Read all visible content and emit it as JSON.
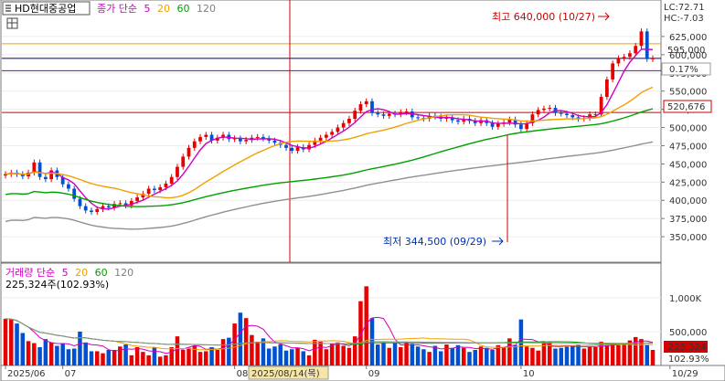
{
  "stock_name": "HD현대중공업",
  "price_legend": {
    "label": "종가 단순",
    "ma": [
      "5",
      "20",
      "60",
      "120"
    ]
  },
  "volume_legend": {
    "label": "거래량 단순",
    "ma": [
      "5",
      "20",
      "60",
      "120"
    ]
  },
  "volume_value_text": "225,324주(102.93%)",
  "lc_text": "LC:72.71",
  "hc_text": "HC:-7.03",
  "high_annotation": "최고 640,000 (10/27)",
  "low_annotation": "최저 344,500 (09/29)",
  "price_tag": "595,000",
  "change_tag": "0.17%",
  "redline_tag": "520,676",
  "vol_tag": "225,324",
  "vol_pct_tag": "102.93%",
  "crosshair_date": "2025/08/14(목)",
  "colors": {
    "up": "#e60000",
    "down": "#0050d0",
    "ma5": "#d000c0",
    "ma20": "#f0a000",
    "ma60": "#00a000",
    "ma120": "#909090"
  },
  "chart_data": [
    {
      "type": "candlestick",
      "title": "HD현대중공업",
      "ylim": [
        320000,
        650000
      ],
      "yticks": [
        350000,
        375000,
        400000,
        425000,
        450000,
        475000,
        500000,
        525000,
        550000,
        575000,
        600000,
        625000
      ],
      "ytick_labels": [
        "350,000",
        "375,000",
        "400,000",
        "425,000",
        "450,000",
        "475,000",
        "500,000",
        "525,000",
        "550,000",
        "575,000",
        "600,000",
        "625,000"
      ],
      "xticks": [
        {
          "i": 0,
          "label": "2025/06"
        },
        {
          "i": 10,
          "label": "07"
        },
        {
          "i": 40,
          "label": "08"
        },
        {
          "i": 63,
          "label": "09"
        },
        {
          "i": 90,
          "label": "10"
        },
        {
          "i": 116,
          "label": "10/29"
        }
      ],
      "high": {
        "value": 640000,
        "date": "10/27"
      },
      "low": {
        "value": 344500,
        "date": "09/29"
      },
      "hlines": [
        {
          "value": 615000,
          "color": "#f0a000"
        },
        {
          "value": 595000,
          "color": "#000080"
        },
        {
          "value": 578000,
          "color": "#9000b0"
        },
        {
          "value": 520676,
          "color": "#cc0000"
        }
      ],
      "closes": [
        436000,
        438000,
        436000,
        433000,
        438000,
        452000,
        432000,
        429000,
        441000,
        432000,
        422000,
        416000,
        402000,
        392000,
        386000,
        384000,
        388000,
        392000,
        390000,
        395000,
        396000,
        393000,
        399000,
        404000,
        409000,
        416000,
        414000,
        418000,
        423000,
        432000,
        446000,
        460000,
        472000,
        481000,
        487000,
        490000,
        482000,
        486000,
        490000,
        484000,
        485000,
        481000,
        483000,
        486000,
        487000,
        485000,
        482000,
        479000,
        476000,
        472000,
        468000,
        473000,
        470000,
        476000,
        482000,
        486000,
        490000,
        494000,
        500000,
        506000,
        512000,
        523000,
        532000,
        536000,
        520000,
        518000,
        516000,
        519000,
        518000,
        521000,
        522000,
        514000,
        513000,
        512000,
        516000,
        515000,
        512000,
        514000,
        510000,
        508000,
        512000,
        509000,
        506000,
        510000,
        506000,
        501000,
        505000,
        507000,
        511000,
        504000,
        498000,
        506000,
        518000,
        524000,
        526000,
        527000,
        520000,
        519000,
        517000,
        514000,
        512000,
        513000,
        518000,
        518000,
        542000,
        566000,
        588000,
        595000,
        597000,
        602000,
        612000,
        632000,
        594000,
        595000
      ],
      "volumes": [
        690000.0,
        680000.0,
        620000.0,
        480000.0,
        360000.0,
        330000.0,
        270000.0,
        390000.0,
        340000.0,
        290000.0,
        330000.0,
        240000.0,
        250000.0,
        500000.0,
        340000.0,
        210000.0,
        210000.0,
        180000.0,
        230000.0,
        230000.0,
        280000.0,
        310000.0,
        150000.0,
        270000.0,
        200000.0,
        150000.0,
        270000.0,
        130000.0,
        150000.0,
        270000.0,
        430000.0,
        230000.0,
        260000.0,
        290000.0,
        200000.0,
        210000.0,
        270000.0,
        230000.0,
        390000.0,
        410000.0,
        620000.0,
        780000.0,
        700000.0,
        450000.0,
        350000.0,
        400000.0,
        250000.0,
        280000.0,
        310000.0,
        220000.0,
        240000.0,
        260000.0,
        210000.0,
        150000.0,
        380000.0,
        350000.0,
        240000.0,
        330000.0,
        340000.0,
        290000.0,
        260000.0,
        430000.0,
        950000.0,
        1170000.0,
        700000.0,
        310000.0,
        340000.0,
        260000.0,
        330000.0,
        270000.0,
        340000.0,
        320000.0,
        280000.0,
        240000.0,
        200000.0,
        290000.0,
        210000.0,
        310000.0,
        260000.0,
        300000.0,
        260000.0,
        200000.0,
        230000.0,
        280000.0,
        260000.0,
        230000.0,
        300000.0,
        270000.0,
        400000.0,
        300000.0,
        680000.0,
        280000.0,
        260000.0,
        220000.0,
        330000.0,
        340000.0,
        250000.0,
        260000.0,
        280000.0,
        290000.0,
        310000.0,
        250000.0,
        270000.0,
        270000.0,
        350000.0,
        300000.0,
        320000.0,
        300000.0,
        320000.0,
        370000.0,
        420000.0,
        390000.0,
        300000.0,
        230000.0
      ],
      "volume_ylim": [
        0,
        1350000
      ],
      "volume_yticks": [
        500000,
        1000000
      ],
      "volume_ytick_labels": [
        "500,000",
        "1,000K"
      ],
      "ma_series": [
        {
          "name": "5"
        },
        {
          "name": "20"
        },
        {
          "name": "60"
        },
        {
          "name": "120"
        }
      ]
    }
  ]
}
